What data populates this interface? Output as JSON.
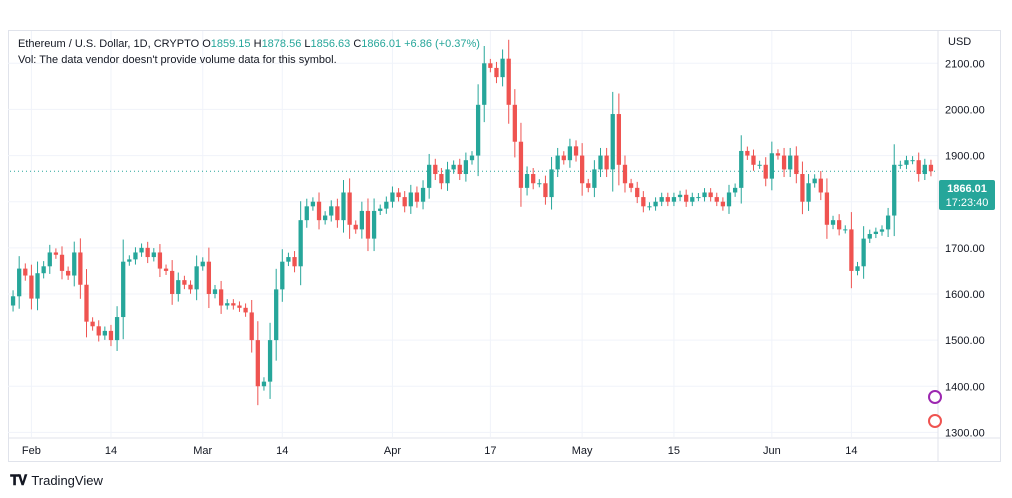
{
  "legend": {
    "symbol": "Ethereum / U.S. Dollar, 1D, CRYPTO",
    "open_label": "O",
    "open": "1859.15",
    "high_label": "H",
    "high": "1878.56",
    "low_label": "L",
    "low": "1856.63",
    "close_label": "C",
    "close": "1866.01",
    "change": "+6.86 (+0.37%)",
    "volume_note": "Vol: The data vendor doesn't provide volume data for this symbol."
  },
  "price_axis": {
    "currency": "USD",
    "last_price": "1866.01",
    "countdown": "17:23:40"
  },
  "brand": {
    "name": "TradingView"
  },
  "colors": {
    "up": "#26a69a",
    "down": "#ef5350",
    "grid": "#f0f3fa",
    "last_line": "#26a69a"
  },
  "chart_data": {
    "type": "candlestick",
    "title": "Ethereum / U.S. Dollar, 1D, CRYPTO",
    "ylabel": "USD",
    "ylim": [
      1290,
      2170
    ],
    "yticks": [
      1300,
      1400,
      1500,
      1600,
      1700,
      1800,
      1900,
      2000,
      2100
    ],
    "ytick_labels": [
      "1300.00",
      "1400.00",
      "1500.00",
      "1600.00",
      "1700.00",
      "1800.00",
      "1900.00",
      "2000.00",
      "2100.00"
    ],
    "xtick_labels": [
      "Feb",
      "14",
      "Mar",
      "14",
      "Apr",
      "17",
      "May",
      "15",
      "Jun",
      "14"
    ],
    "xtick_index": [
      3,
      16,
      31,
      44,
      62,
      78,
      93,
      108,
      124,
      137
    ],
    "last_price": 1866.01,
    "grid": true,
    "closes": [
      1595,
      1655,
      1640,
      1590,
      1645,
      1660,
      1690,
      1685,
      1650,
      1640,
      1690,
      1620,
      1540,
      1530,
      1510,
      1520,
      1500,
      1550,
      1670,
      1675,
      1690,
      1700,
      1680,
      1690,
      1655,
      1650,
      1600,
      1630,
      1620,
      1610,
      1660,
      1670,
      1600,
      1610,
      1575,
      1580,
      1575,
      1570,
      1560,
      1500,
      1400,
      1410,
      1500,
      1610,
      1670,
      1680,
      1660,
      1760,
      1790,
      1800,
      1760,
      1770,
      1790,
      1760,
      1820,
      1750,
      1740,
      1780,
      1720,
      1780,
      1785,
      1800,
      1820,
      1810,
      1790,
      1820,
      1800,
      1830,
      1880,
      1860,
      1840,
      1870,
      1880,
      1860,
      1890,
      1900,
      2010,
      2100,
      2090,
      2070,
      2110,
      2010,
      1930,
      1830,
      1860,
      1840,
      1840,
      1810,
      1870,
      1900,
      1890,
      1920,
      1900,
      1840,
      1830,
      1870,
      1900,
      1870,
      1990,
      1880,
      1840,
      1830,
      1810,
      1790,
      1790,
      1800,
      1810,
      1800,
      1810,
      1815,
      1800,
      1810,
      1810,
      1820,
      1810,
      1800,
      1790,
      1820,
      1830,
      1910,
      1900,
      1880,
      1880,
      1850,
      1905,
      1900,
      1870,
      1900,
      1860,
      1800,
      1840,
      1850,
      1820,
      1750,
      1760,
      1740,
      1740,
      1650,
      1660,
      1720,
      1730,
      1735,
      1740,
      1770,
      1880,
      1880,
      1890,
      1890,
      1860,
      1880,
      1866
    ]
  }
}
